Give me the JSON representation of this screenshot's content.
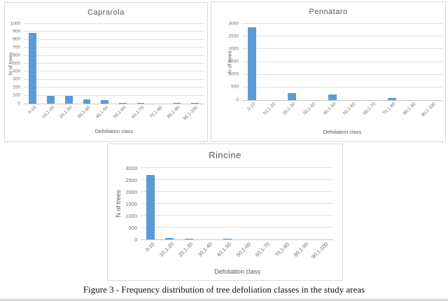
{
  "page": {
    "caption": "Figure 3 - Frequency distribution of tree defoliation classes in the study areas"
  },
  "chart_data": [
    {
      "id": "caprarola",
      "type": "bar",
      "title": "Caprarola",
      "xlabel": "Defoliation class",
      "ylabel": "N of trees",
      "ylim": [
        0,
        1000
      ],
      "ytick_step": 100,
      "grid": true,
      "legend": "none",
      "bar_color": "#5B9BD5",
      "categories": [
        "0-10",
        "10,1-20",
        "20,1-30",
        "30,1-40",
        "40,1-50",
        "50,1-60",
        "60,1-70",
        "70,1-80",
        "80,1-90",
        "90,1-100"
      ],
      "values": [
        885,
        100,
        100,
        55,
        45,
        12,
        12,
        0,
        8,
        8
      ]
    },
    {
      "id": "pennataro",
      "type": "bar",
      "title": "Pennataro",
      "xlabel": "Defoliation class",
      "ylabel": "N of trees",
      "ylim": [
        0,
        3000
      ],
      "ytick_step": 500,
      "grid": true,
      "legend": "none",
      "bar_color": "#5B9BD5",
      "categories": [
        "0-10",
        "10,1-20",
        "20,1-30",
        "30,1-40",
        "40,1-50",
        "50,1-60",
        "60,1-70",
        "70,1-80",
        "80,1-90",
        "90,1-100"
      ],
      "values": [
        2850,
        0,
        280,
        0,
        210,
        0,
        0,
        70,
        0,
        0
      ]
    },
    {
      "id": "rincine",
      "type": "bar",
      "title": "Rincine",
      "xlabel": "Defoliation class",
      "ylabel": "N of trees",
      "ylim": [
        0,
        3000
      ],
      "ytick_step": 500,
      "grid": true,
      "legend": "none",
      "bar_color": "#5B9BD5",
      "categories": [
        "0-10",
        "10,1-20",
        "20,1-30",
        "30,1-40",
        "40,1-50",
        "50,1-60",
        "60,1-70",
        "70,1-80",
        "80,1-90",
        "90,1-100"
      ],
      "values": [
        2700,
        50,
        35,
        0,
        30,
        0,
        0,
        0,
        0,
        0
      ]
    }
  ]
}
